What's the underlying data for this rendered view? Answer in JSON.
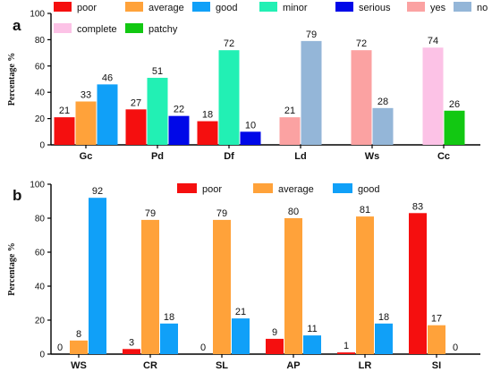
{
  "chart_data": [
    {
      "panel": "a",
      "type": "bar",
      "ylabel": "Percentage %",
      "ylim": [
        0,
        100
      ],
      "yticks": [
        0,
        20,
        40,
        60,
        80,
        100
      ],
      "grid": false,
      "legend_position": "top",
      "categories": [
        "Gc",
        "Pd",
        "Df",
        "Ld",
        "Ws",
        "Cc"
      ],
      "legend": [
        {
          "label": "poor",
          "color": "#f50f0f"
        },
        {
          "label": "average",
          "color": "#ffa23a"
        },
        {
          "label": "good",
          "color": "#10a0f8"
        },
        {
          "label": "minor",
          "color": "#22f0b4"
        },
        {
          "label": "serious",
          "color": "#0008e8"
        },
        {
          "label": "yes",
          "color": "#fba2a2"
        },
        {
          "label": "no",
          "color": "#94b6d8"
        },
        {
          "label": "complete",
          "color": "#fcc2e6"
        },
        {
          "label": "patchy",
          "color": "#12c812"
        }
      ],
      "groups": [
        {
          "category": "Gc",
          "bars": [
            {
              "series": "poor",
              "value": 21,
              "color": "#f50f0f"
            },
            {
              "series": "average",
              "value": 33,
              "color": "#ffa23a"
            },
            {
              "series": "good",
              "value": 46,
              "color": "#10a0f8"
            }
          ]
        },
        {
          "category": "Pd",
          "bars": [
            {
              "series": "poor",
              "value": 27,
              "color": "#f50f0f"
            },
            {
              "series": "minor",
              "value": 51,
              "color": "#22f0b4"
            },
            {
              "series": "serious",
              "value": 22,
              "color": "#0008e8"
            }
          ]
        },
        {
          "category": "Df",
          "bars": [
            {
              "series": "poor",
              "value": 18,
              "color": "#f50f0f"
            },
            {
              "series": "minor",
              "value": 72,
              "color": "#22f0b4"
            },
            {
              "series": "serious",
              "value": 10,
              "color": "#0008e8"
            }
          ]
        },
        {
          "category": "Ld",
          "bars": [
            {
              "series": "yes",
              "value": 21,
              "color": "#fba2a2"
            },
            {
              "series": "no",
              "value": 79,
              "color": "#94b6d8"
            }
          ]
        },
        {
          "category": "Ws",
          "bars": [
            {
              "series": "yes",
              "value": 72,
              "color": "#fba2a2"
            },
            {
              "series": "no",
              "value": 28,
              "color": "#94b6d8"
            }
          ]
        },
        {
          "category": "Cc",
          "bars": [
            {
              "series": "complete",
              "value": 74,
              "color": "#fcc2e6"
            },
            {
              "series": "patchy",
              "value": 26,
              "color": "#12c812"
            }
          ]
        }
      ]
    },
    {
      "panel": "b",
      "type": "bar",
      "ylabel": "Percentage %",
      "ylim": [
        0,
        100
      ],
      "yticks": [
        0,
        20,
        40,
        60,
        80,
        100
      ],
      "grid": false,
      "legend_position": "top",
      "categories": [
        "WS",
        "CR",
        "SL",
        "AP",
        "LR",
        "SI"
      ],
      "legend": [
        {
          "label": "poor",
          "color": "#f50f0f"
        },
        {
          "label": "average",
          "color": "#ffa23a"
        },
        {
          "label": "good",
          "color": "#10a0f8"
        }
      ],
      "series": [
        {
          "name": "poor",
          "color": "#f50f0f",
          "values": [
            0,
            3,
            0,
            9,
            1,
            83
          ]
        },
        {
          "name": "average",
          "color": "#ffa23a",
          "values": [
            8,
            79,
            79,
            80,
            81,
            17
          ]
        },
        {
          "name": "good",
          "color": "#10a0f8",
          "values": [
            92,
            18,
            21,
            11,
            18,
            0
          ]
        }
      ]
    }
  ]
}
